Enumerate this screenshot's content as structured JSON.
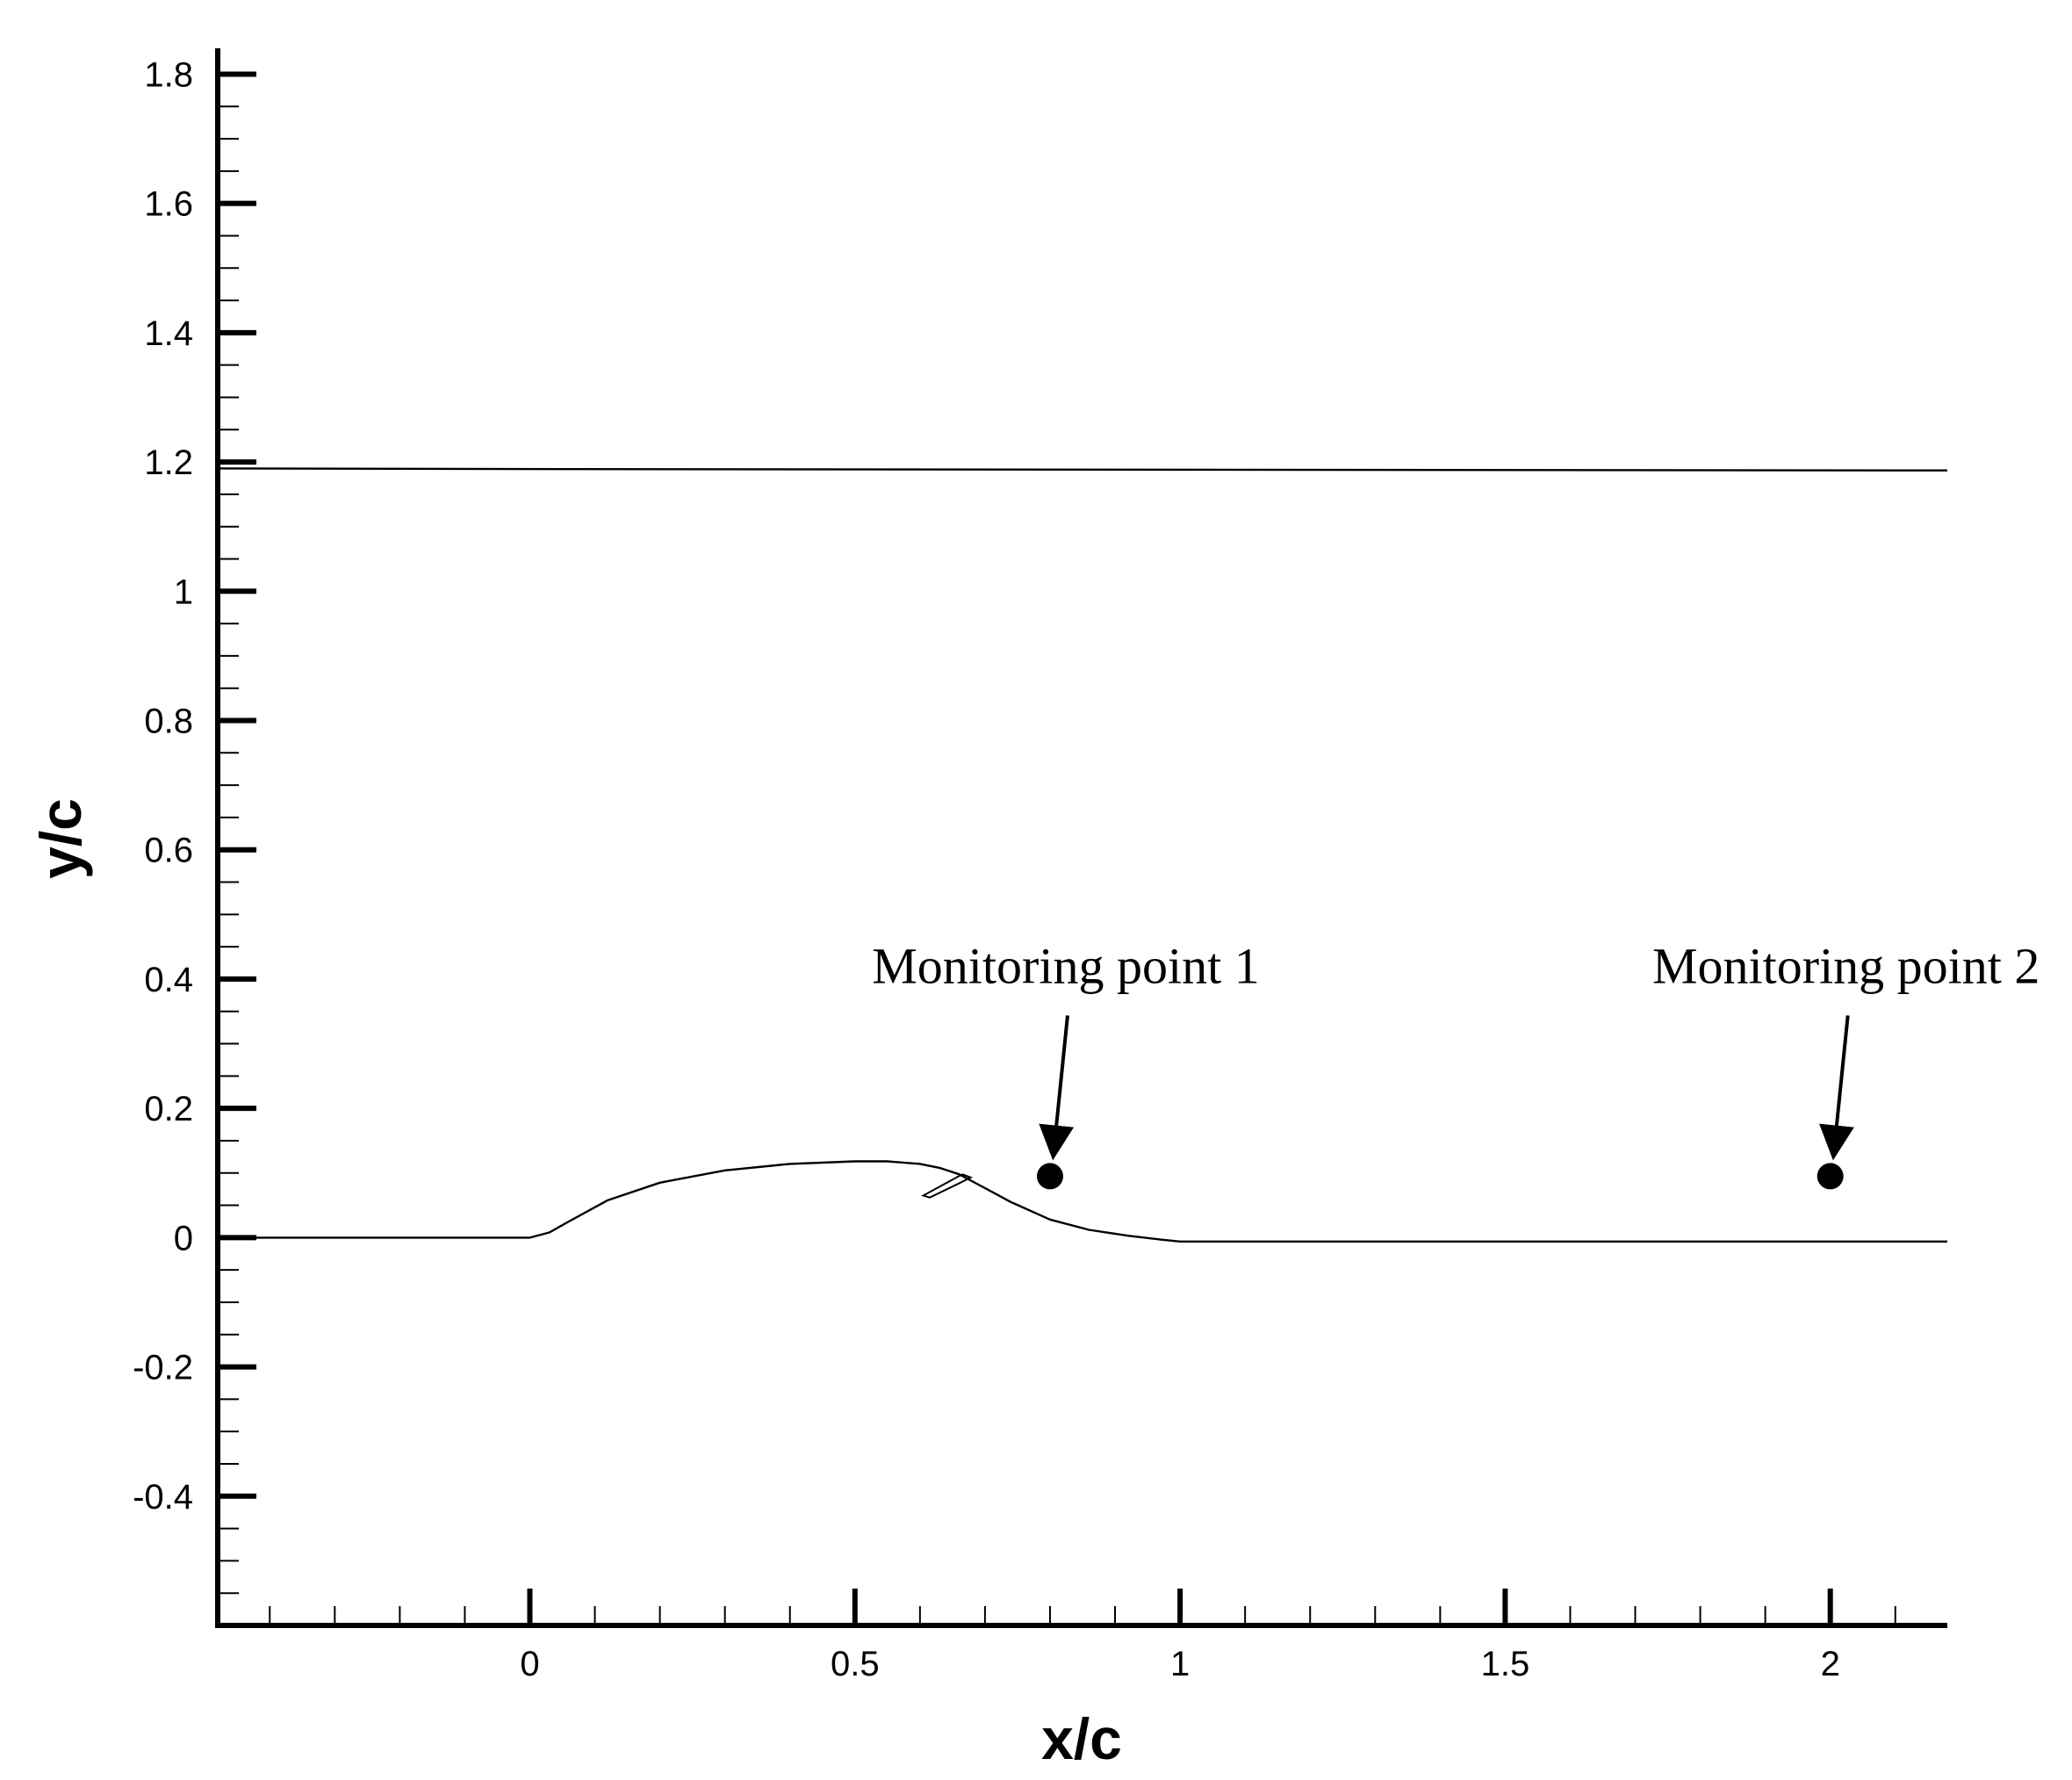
{
  "chart_data": {
    "type": "line",
    "title": "",
    "xlabel": "x/c",
    "ylabel": "y/c",
    "xlim": [
      -0.48,
      2.18
    ],
    "ylim": [
      -0.6,
      1.84
    ],
    "x_ticks": [
      {
        "value": 0,
        "label": "0"
      },
      {
        "value": 0.5,
        "label": "0.5"
      },
      {
        "value": 1,
        "label": "1"
      },
      {
        "value": 1.5,
        "label": "1.5"
      },
      {
        "value": 2,
        "label": "2"
      }
    ],
    "y_ticks": [
      {
        "value": 1.8,
        "label": "1.8"
      },
      {
        "value": 1.6,
        "label": "1.6"
      },
      {
        "value": 1.4,
        "label": "1.4"
      },
      {
        "value": 1.2,
        "label": "1.2"
      },
      {
        "value": 1.0,
        "label": "1"
      },
      {
        "value": 0.8,
        "label": "0.8"
      },
      {
        "value": 0.6,
        "label": "0.6"
      },
      {
        "value": 0.4,
        "label": "0.4"
      },
      {
        "value": 0.2,
        "label": "0.2"
      },
      {
        "value": 0,
        "label": "0"
      },
      {
        "value": -0.2,
        "label": "-0.2"
      },
      {
        "value": -0.4,
        "label": "-0.4"
      }
    ],
    "series": [
      {
        "x": [
          -0.48,
          0.08,
          2.18
        ],
        "y": [
          1.19,
          1.189,
          1.187
        ],
        "color": "#000000"
      },
      {
        "x": [
          -0.48,
          0.0,
          0.03,
          0.06,
          0.12,
          0.2,
          0.3,
          0.4,
          0.5,
          0.55,
          0.6,
          0.63,
          0.66,
          0.69,
          0.74,
          0.8,
          0.86,
          0.92,
          0.97,
          1.0,
          2.18
        ],
        "y": [
          0.0,
          0.0,
          0.008,
          0.025,
          0.058,
          0.085,
          0.104,
          0.114,
          0.118,
          0.118,
          0.114,
          0.108,
          0.098,
          0.082,
          0.055,
          0.028,
          0.012,
          0.003,
          -0.003,
          -0.006,
          -0.006
        ],
        "color": "#000000"
      }
    ],
    "flap": {
      "x": [
        0.665,
        0.678,
        0.658,
        0.615,
        0.605,
        0.665
      ],
      "y": [
        0.098,
        0.093,
        0.083,
        0.062,
        0.065,
        0.098
      ]
    },
    "points": [
      {
        "label": "Monitoring point 1",
        "x": 0.8,
        "y": 0.095
      },
      {
        "label": "Monitoring point 2",
        "x": 2.0,
        "y": 0.095
      }
    ],
    "grid": false,
    "legend": "none"
  }
}
